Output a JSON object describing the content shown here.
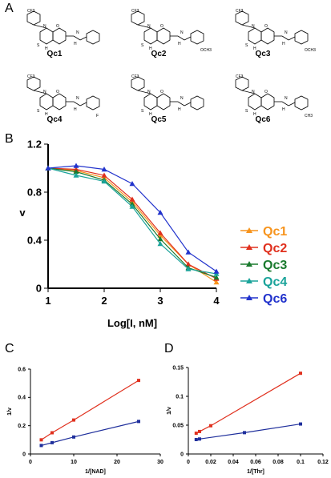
{
  "panels": {
    "a": "A",
    "b": "B",
    "c": "C",
    "d": "D"
  },
  "compounds": [
    {
      "label": "Qc1",
      "substituent": ""
    },
    {
      "label": "Qc2",
      "substituent": "OCH3"
    },
    {
      "label": "Qc3",
      "substituent": "OCH3"
    },
    {
      "label": "Qc4",
      "substituent": "F"
    },
    {
      "label": "Qc5",
      "substituent": ""
    },
    {
      "label": "Qc6",
      "substituent": "CH3"
    }
  ],
  "structure_text": {
    "cf3": "CF3",
    "n": "N",
    "h": "H",
    "s": "S",
    "o": "O",
    "nh": "H",
    "n2": "N"
  },
  "colors": {
    "Qc1": "#f7941d",
    "Qc2": "#e0301e",
    "Qc3": "#1a7a2e",
    "Qc4": "#1aa39a",
    "Qc6": "#2233cc",
    "red": "#e0301e",
    "blue": "#1f2f9c"
  },
  "chart_data": [
    {
      "type": "line",
      "panel": "B",
      "xlabel": "Log[I, nM]",
      "ylabel": "v",
      "xlim": [
        1,
        4
      ],
      "ylim": [
        0,
        1.2
      ],
      "xticks": [
        "1",
        "2",
        "3",
        "4"
      ],
      "yticks": [
        "0",
        "0.4",
        "0.8",
        "1.2"
      ],
      "legend_position": "right",
      "x": [
        1,
        1.5,
        2,
        2.5,
        3,
        3.5,
        4
      ],
      "series": [
        {
          "name": "Qc1",
          "values": [
            1.0,
            0.98,
            0.92,
            0.72,
            0.44,
            0.2,
            0.05
          ]
        },
        {
          "name": "Qc2",
          "values": [
            1.0,
            0.99,
            0.94,
            0.74,
            0.46,
            0.2,
            0.08
          ]
        },
        {
          "name": "Qc3",
          "values": [
            1.0,
            0.97,
            0.9,
            0.7,
            0.41,
            0.17,
            0.09
          ]
        },
        {
          "name": "Qc4",
          "values": [
            1.0,
            0.94,
            0.89,
            0.68,
            0.37,
            0.16,
            0.12
          ]
        },
        {
          "name": "Qc6",
          "values": [
            1.0,
            1.02,
            0.99,
            0.87,
            0.63,
            0.3,
            0.14
          ]
        }
      ]
    },
    {
      "type": "line",
      "panel": "C",
      "xlabel": "1/[NAD]",
      "ylabel": "1/v",
      "xlim": [
        0,
        30
      ],
      "ylim": [
        0,
        0.6
      ],
      "xticks": [
        "0",
        "10",
        "20",
        "30"
      ],
      "yticks": [
        "0",
        "0.2",
        "0.4",
        "0.6"
      ],
      "series": [
        {
          "name": "",
          "color": "red",
          "x": [
            2.5,
            5,
            10,
            25
          ],
          "values": [
            0.1,
            0.15,
            0.24,
            0.52
          ]
        },
        {
          "name": "",
          "color": "blue",
          "x": [
            2.5,
            5,
            10,
            25
          ],
          "values": [
            0.06,
            0.08,
            0.12,
            0.23
          ]
        }
      ]
    },
    {
      "type": "line",
      "panel": "D",
      "xlabel": "1/[Thr]",
      "ylabel": "1/v",
      "xlim": [
        0,
        0.12
      ],
      "ylim": [
        0,
        0.15
      ],
      "xticks": [
        "0",
        "0.02",
        "0.04",
        "0.06",
        "0.08",
        "0.1",
        "0.12"
      ],
      "yticks": [
        "0",
        "0.05",
        "0.1",
        "0.15"
      ],
      "series": [
        {
          "name": "",
          "color": "red",
          "x": [
            0.007,
            0.01,
            0.02,
            0.1
          ],
          "values": [
            0.036,
            0.039,
            0.049,
            0.14
          ]
        },
        {
          "name": "",
          "color": "blue",
          "x": [
            0.007,
            0.01,
            0.05,
            0.1
          ],
          "values": [
            0.025,
            0.026,
            0.037,
            0.052
          ]
        }
      ]
    }
  ]
}
